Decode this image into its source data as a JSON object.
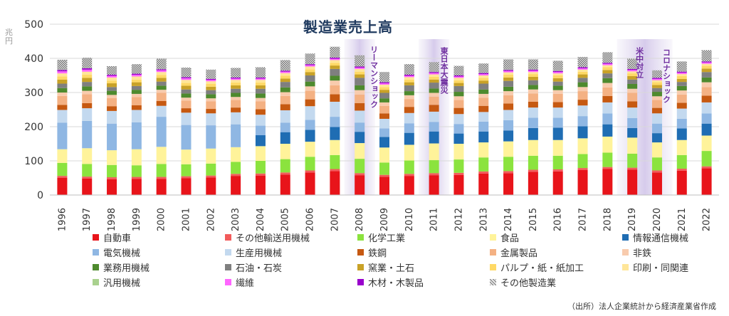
{
  "chart_data": {
    "type": "bar",
    "stacked": true,
    "title": "製造業売上高",
    "unit": "兆円",
    "xlabel": "",
    "ylabel": "",
    "ylim": [
      0,
      500
    ],
    "yticks": [
      0,
      100,
      200,
      300,
      400,
      500
    ],
    "grid": true,
    "legend_position": "bottom",
    "categories": [
      "1996",
      "1997",
      "1998",
      "1999",
      "2000",
      "2001",
      "2002",
      "2003",
      "2004",
      "2005",
      "2006",
      "2007",
      "2008",
      "2009",
      "2010",
      "2011",
      "2012",
      "2013",
      "2014",
      "2015",
      "2016",
      "2017",
      "2018",
      "2019",
      "2020",
      "2021",
      "2022"
    ],
    "series": [
      {
        "name": "自動車",
        "color": "#e8141a",
        "values": [
          50,
          48,
          46,
          47,
          47,
          49,
          51,
          56,
          57,
          60,
          66,
          70,
          58,
          53,
          56,
          58,
          59,
          63,
          64,
          68,
          69,
          73,
          76,
          74,
          66,
          71,
          78
        ]
      },
      {
        "name": "その他輸送用機械",
        "color": "#f25b5b",
        "values": [
          6,
          6,
          6,
          6,
          6,
          6,
          6,
          6,
          6,
          6,
          6,
          6,
          6,
          6,
          6,
          6,
          6,
          6,
          6,
          6,
          6,
          6,
          6,
          6,
          6,
          6,
          6
        ]
      },
      {
        "name": "化学工業",
        "color": "#8be33e",
        "values": [
          38,
          37,
          36,
          34,
          38,
          35,
          35,
          35,
          37,
          39,
          40,
          41,
          42,
          36,
          39,
          38,
          39,
          41,
          42,
          41,
          40,
          41,
          42,
          41,
          38,
          40,
          45
        ]
      },
      {
        "name": "食品",
        "color": "#fff39a",
        "values": [
          40,
          46,
          43,
          47,
          50,
          43,
          44,
          43,
          43,
          45,
          44,
          44,
          46,
          44,
          46,
          49,
          46,
          44,
          45,
          46,
          46,
          46,
          47,
          47,
          44,
          44,
          45
        ]
      },
      {
        "name": "情報通信機械",
        "color": "#1f6db3",
        "values": [
          0,
          0,
          0,
          0,
          0,
          0,
          0,
          0,
          32,
          34,
          35,
          38,
          33,
          31,
          35,
          35,
          30,
          32,
          32,
          35,
          36,
          35,
          36,
          28,
          27,
          34,
          35
        ]
      },
      {
        "name": "電気機械",
        "color": "#8fb7e3",
        "values": [
          78,
          80,
          78,
          79,
          88,
          72,
          68,
          67,
          28,
          28,
          29,
          30,
          27,
          25,
          28,
          28,
          28,
          29,
          30,
          30,
          29,
          30,
          32,
          29,
          28,
          28,
          30
        ]
      },
      {
        "name": "生産用機械",
        "color": "#c3d9ef",
        "values": [
          37,
          37,
          37,
          36,
          32,
          36,
          35,
          35,
          32,
          36,
          40,
          44,
          35,
          28,
          30,
          30,
          29,
          28,
          30,
          30,
          30,
          31,
          32,
          31,
          30,
          30,
          32
        ]
      },
      {
        "name": "鉄鋼",
        "color": "#c65911",
        "values": [
          15,
          15,
          14,
          14,
          14,
          13,
          13,
          14,
          16,
          18,
          20,
          22,
          22,
          16,
          18,
          20,
          18,
          18,
          19,
          17,
          16,
          17,
          19,
          18,
          16,
          17,
          20
        ]
      },
      {
        "name": "金属製品",
        "color": "#f4b183",
        "values": [
          26,
          26,
          24,
          24,
          24,
          22,
          22,
          22,
          23,
          24,
          25,
          26,
          25,
          22,
          23,
          24,
          23,
          24,
          24,
          24,
          24,
          25,
          25,
          25,
          23,
          24,
          25
        ]
      },
      {
        "name": "非鉄",
        "color": "#f8cbad",
        "values": [
          10,
          10,
          9,
          9,
          9,
          9,
          9,
          9,
          10,
          11,
          13,
          14,
          13,
          10,
          11,
          11,
          11,
          11,
          12,
          12,
          11,
          12,
          13,
          12,
          11,
          12,
          14
        ]
      },
      {
        "name": "業務用機械",
        "color": "#4e8a2e",
        "values": [
          13,
          13,
          12,
          12,
          12,
          12,
          12,
          12,
          13,
          14,
          14,
          14,
          14,
          12,
          12,
          13,
          13,
          13,
          13,
          13,
          13,
          14,
          14,
          14,
          13,
          13,
          14
        ]
      },
      {
        "name": "石油・石炭",
        "color": "#7f7f7f",
        "values": [
          13,
          13,
          11,
          11,
          12,
          12,
          12,
          12,
          14,
          16,
          18,
          20,
          22,
          16,
          17,
          17,
          17,
          17,
          17,
          14,
          12,
          13,
          14,
          13,
          11,
          12,
          16
        ]
      },
      {
        "name": "窯業・土石",
        "color": "#c9a227",
        "values": [
          12,
          12,
          11,
          11,
          11,
          11,
          10,
          10,
          10,
          10,
          10,
          10,
          10,
          9,
          9,
          9,
          9,
          9,
          10,
          10,
          10,
          10,
          10,
          10,
          9,
          9,
          10
        ]
      },
      {
        "name": "パルプ・紙・紙加工",
        "color": "#ffd966",
        "values": [
          9,
          9,
          8,
          8,
          8,
          8,
          8,
          8,
          8,
          8,
          8,
          8,
          8,
          8,
          8,
          8,
          8,
          8,
          8,
          8,
          8,
          8,
          8,
          8,
          8,
          8,
          8
        ]
      },
      {
        "name": "印刷・同関連",
        "color": "#ffe699",
        "values": [
          9,
          9,
          9,
          9,
          9,
          9,
          8,
          8,
          8,
          8,
          8,
          8,
          8,
          7,
          7,
          7,
          7,
          7,
          7,
          6,
          6,
          6,
          6,
          6,
          6,
          6,
          6
        ]
      },
      {
        "name": "汎用機械",
        "color": "#a9d18e",
        "values": [
          0,
          0,
          0,
          0,
          0,
          0,
          0,
          0,
          0,
          0,
          0,
          0,
          0,
          0,
          0,
          0,
          0,
          0,
          0,
          0,
          0,
          0,
          0,
          0,
          0,
          0,
          0
        ]
      },
      {
        "name": "繊維",
        "color": "#ff66ff",
        "values": [
          6,
          6,
          5,
          5,
          5,
          5,
          4,
          4,
          4,
          4,
          4,
          4,
          4,
          4,
          4,
          4,
          4,
          4,
          4,
          4,
          4,
          4,
          4,
          4,
          4,
          4,
          4
        ]
      },
      {
        "name": "木材・木製品",
        "color": "#9900cc",
        "values": [
          4,
          4,
          3,
          3,
          3,
          3,
          3,
          3,
          3,
          3,
          3,
          3,
          3,
          3,
          3,
          3,
          3,
          3,
          3,
          3,
          3,
          3,
          3,
          3,
          3,
          3,
          3
        ]
      },
      {
        "name": "その他製造業",
        "color": "#bfbfbf",
        "pattern": "dotted",
        "values": [
          30,
          31,
          25,
          28,
          31,
          28,
          27,
          28,
          30,
          31,
          31,
          32,
          33,
          30,
          31,
          29,
          28,
          28,
          31,
          30,
          30,
          30,
          31,
          30,
          22,
          30,
          33
        ]
      }
    ],
    "annotations": [
      {
        "label": "リーマンショック",
        "x_category": "2008"
      },
      {
        "label": "東日本大震災",
        "x_category": "2011"
      },
      {
        "label": "米中対立",
        "x_category": "2019"
      },
      {
        "label": "コロナショック",
        "x_category": "2020"
      }
    ]
  },
  "source_note": "（出所）法人企業統計から経済産業省作成"
}
